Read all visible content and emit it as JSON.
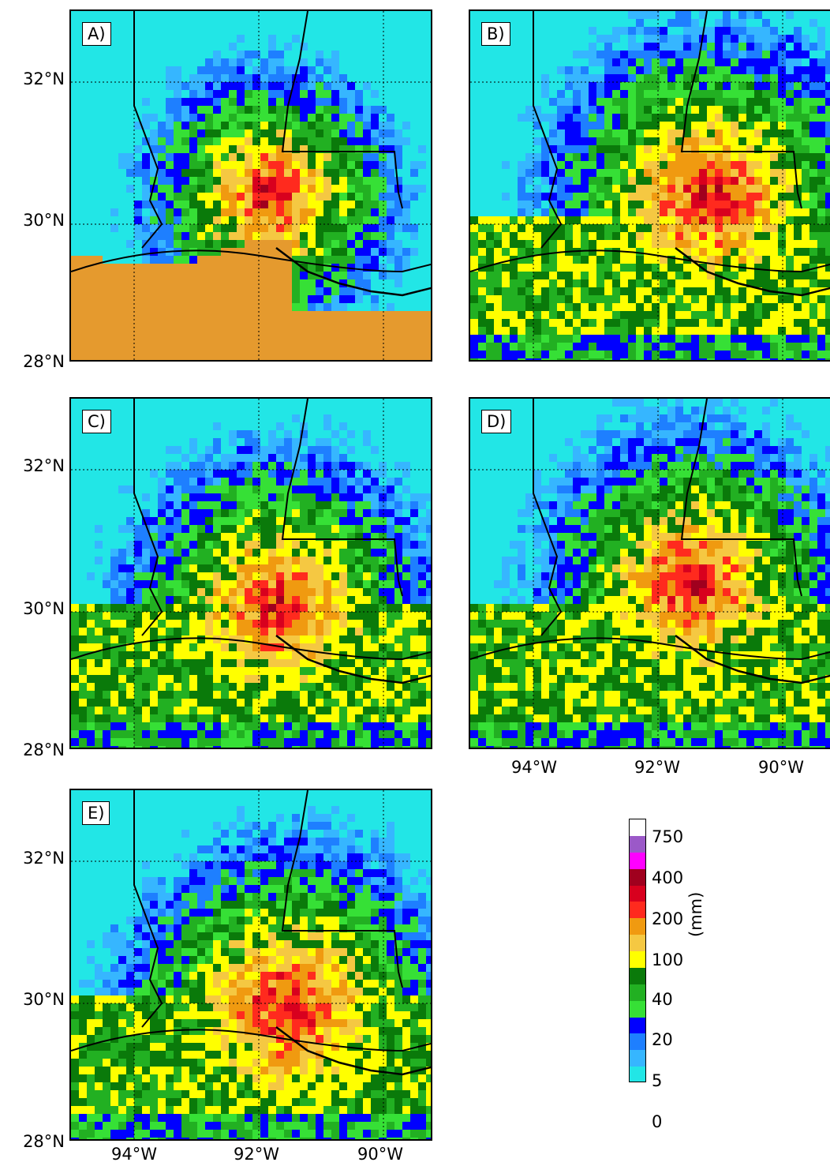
{
  "figure": {
    "panels": [
      {
        "id": "A",
        "label": "A)"
      },
      {
        "id": "B",
        "label": "B)"
      },
      {
        "id": "C",
        "label": "C)"
      },
      {
        "id": "D",
        "label": "D)"
      },
      {
        "id": "E",
        "label": "E)"
      }
    ],
    "lat_labels": [
      "32°N",
      "30°N",
      "28°N"
    ],
    "lon_labels": [
      "94°W",
      "92°W",
      "90°W"
    ]
  },
  "colorbar": {
    "ticks": [
      "750",
      "400",
      "200",
      "100",
      "40",
      "20",
      "5",
      "0"
    ],
    "unit": "(mm)",
    "colors": [
      "#ffffff",
      "#9b59c8",
      "#ff00ff",
      "#a0001e",
      "#d8001e",
      "#ff2a1e",
      "#f09a10",
      "#f5c842",
      "#ffff00",
      "#0a7a0a",
      "#22b022",
      "#36e036",
      "#0000ff",
      "#1e7fff",
      "#36b6ff",
      "#22e6e6"
    ]
  }
}
